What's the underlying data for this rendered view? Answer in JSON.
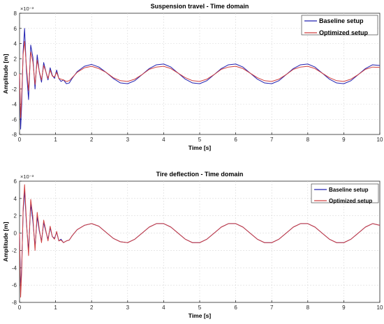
{
  "chart_data": [
    {
      "type": "line",
      "title": "Suspension travel - Time domain",
      "xlabel": "Time [s]",
      "ylabel": "Amplitude [m]",
      "y_exponent_label": "×10⁻³",
      "xlim": [
        0,
        10
      ],
      "ylim": [
        -8,
        8
      ],
      "xticks": [
        "0",
        "1",
        "2",
        "3",
        "4",
        "5",
        "6",
        "7",
        "8",
        "9",
        "10"
      ],
      "yticks": [
        "-8",
        "-6",
        "-4",
        "-2",
        "0",
        "2",
        "4",
        "6",
        "8"
      ],
      "grid": true,
      "legend_position": "top-right",
      "series": [
        {
          "name": "Baseline setup",
          "color": "#2020b0",
          "x": [
            0,
            0.03,
            0.06,
            0.1,
            0.14,
            0.19,
            0.25,
            0.31,
            0.37,
            0.43,
            0.49,
            0.55,
            0.61,
            0.67,
            0.73,
            0.79,
            0.85,
            0.91,
            0.97,
            1.03,
            1.09,
            1.15,
            1.22,
            1.3,
            1.38,
            1.46,
            1.6,
            1.8,
            2.0,
            2.2,
            2.4,
            2.6,
            2.8,
            3.0,
            3.2,
            3.4,
            3.6,
            3.8,
            4.0,
            4.2,
            4.4,
            4.6,
            4.8,
            5.0,
            5.2,
            5.4,
            5.6,
            5.8,
            6.0,
            6.2,
            6.4,
            6.6,
            6.8,
            7.0,
            7.2,
            7.4,
            7.6,
            7.8,
            8.0,
            8.2,
            8.4,
            8.6,
            8.8,
            9.0,
            9.2,
            9.4,
            9.6,
            9.8,
            10.0
          ],
          "y": [
            0,
            -7.3,
            -4.0,
            3.0,
            6.0,
            0.5,
            -3.4,
            3.8,
            2.2,
            -2.0,
            2.5,
            0.2,
            -1.1,
            1.5,
            0.3,
            -0.8,
            0.8,
            -0.2,
            -0.6,
            0.5,
            -0.6,
            -1.0,
            -0.8,
            -1.3,
            -1.2,
            -0.6,
            0.3,
            1.0,
            1.25,
            0.9,
            0.2,
            -0.6,
            -1.2,
            -1.3,
            -0.9,
            -0.1,
            0.7,
            1.2,
            1.3,
            0.9,
            0.1,
            -0.7,
            -1.2,
            -1.3,
            -0.9,
            -0.1,
            0.7,
            1.2,
            1.3,
            0.9,
            0.1,
            -0.7,
            -1.2,
            -1.3,
            -0.9,
            -0.1,
            0.7,
            1.2,
            1.3,
            0.9,
            0.1,
            -0.7,
            -1.2,
            -1.3,
            -0.9,
            -0.1,
            0.7,
            1.2,
            1.1
          ]
        },
        {
          "name": "Optimized setup",
          "color": "#d04040",
          "x": [
            0,
            0.03,
            0.06,
            0.1,
            0.14,
            0.19,
            0.25,
            0.31,
            0.37,
            0.43,
            0.49,
            0.55,
            0.61,
            0.67,
            0.73,
            0.79,
            0.85,
            0.91,
            0.97,
            1.03,
            1.09,
            1.15,
            1.22,
            1.3,
            1.38,
            1.46,
            1.6,
            1.8,
            2.0,
            2.2,
            2.4,
            2.6,
            2.8,
            3.0,
            3.2,
            3.4,
            3.6,
            3.8,
            4.0,
            4.2,
            4.4,
            4.6,
            4.8,
            5.0,
            5.2,
            5.4,
            5.6,
            5.8,
            6.0,
            6.2,
            6.4,
            6.6,
            6.8,
            7.0,
            7.2,
            7.4,
            7.6,
            7.8,
            8.0,
            8.2,
            8.4,
            8.6,
            8.8,
            9.0,
            9.2,
            9.4,
            9.6,
            9.8,
            10.0
          ],
          "y": [
            0,
            -5.8,
            -2.8,
            2.6,
            4.3,
            1.0,
            -2.2,
            2.9,
            1.6,
            -1.4,
            1.8,
            0.3,
            -0.8,
            1.1,
            0.3,
            -0.6,
            0.5,
            -0.3,
            -0.4,
            0.2,
            -0.6,
            -0.7,
            -0.8,
            -1.0,
            -0.9,
            -0.5,
            0.2,
            0.8,
            1.0,
            0.7,
            0.2,
            -0.5,
            -0.9,
            -1.0,
            -0.7,
            -0.1,
            0.6,
            0.9,
            1.0,
            0.7,
            0.1,
            -0.5,
            -0.9,
            -1.0,
            -0.7,
            -0.1,
            0.6,
            0.9,
            1.0,
            0.7,
            0.1,
            -0.5,
            -0.9,
            -1.0,
            -0.7,
            -0.1,
            0.6,
            0.9,
            1.0,
            0.7,
            0.1,
            -0.5,
            -0.9,
            -1.0,
            -0.7,
            -0.1,
            0.6,
            0.9,
            0.85
          ]
        }
      ]
    },
    {
      "type": "line",
      "title": "Tire deflection - Time domain",
      "xlabel": "Time [s]",
      "ylabel": "Amplitude [m]",
      "y_exponent_label": "×10⁻³",
      "xlim": [
        0,
        10
      ],
      "ylim": [
        -8,
        6
      ],
      "xticks": [
        "0",
        "1",
        "2",
        "3",
        "4",
        "5",
        "6",
        "7",
        "8",
        "9",
        "10"
      ],
      "yticks": [
        "-8",
        "-6",
        "-4",
        "-2",
        "0",
        "2",
        "4",
        "6"
      ],
      "grid": true,
      "legend_position": "top-right",
      "series": [
        {
          "name": "Baseline setup",
          "color": "#2020b0",
          "x": [
            0,
            0.03,
            0.06,
            0.1,
            0.14,
            0.19,
            0.25,
            0.31,
            0.37,
            0.43,
            0.49,
            0.55,
            0.61,
            0.67,
            0.73,
            0.79,
            0.85,
            0.91,
            0.97,
            1.03,
            1.09,
            1.15,
            1.22,
            1.3,
            1.38,
            1.46,
            1.6,
            1.8,
            2.0,
            2.2,
            2.4,
            2.6,
            2.8,
            3.0,
            3.2,
            3.4,
            3.6,
            3.8,
            4.0,
            4.2,
            4.4,
            4.6,
            4.8,
            5.0,
            5.2,
            5.4,
            5.6,
            5.8,
            6.0,
            6.2,
            6.4,
            6.6,
            6.8,
            7.0,
            7.2,
            7.4,
            7.6,
            7.8,
            8.0,
            8.2,
            8.4,
            8.6,
            8.8,
            9.0,
            9.2,
            9.4,
            9.6,
            9.8,
            10.0
          ],
          "y": [
            0,
            -6.6,
            -3.8,
            2.5,
            4.9,
            1.2,
            -2.0,
            3.3,
            1.4,
            -1.6,
            1.9,
            0.2,
            -0.9,
            1.2,
            0.2,
            -0.7,
            0.6,
            -0.4,
            -0.6,
            0.1,
            -0.9,
            -0.7,
            -1.1,
            -0.9,
            -0.8,
            -0.3,
            0.4,
            0.9,
            1.1,
            0.8,
            0.1,
            -0.6,
            -1.0,
            -1.1,
            -0.7,
            0.0,
            0.7,
            1.1,
            1.1,
            0.7,
            0.0,
            -0.7,
            -1.1,
            -1.1,
            -0.7,
            0.0,
            0.7,
            1.1,
            1.1,
            0.7,
            0.0,
            -0.7,
            -1.1,
            -1.1,
            -0.7,
            0.0,
            0.7,
            1.1,
            1.1,
            0.7,
            0.0,
            -0.7,
            -1.1,
            -1.1,
            -0.7,
            0.0,
            0.7,
            1.1,
            0.9
          ]
        },
        {
          "name": "Optimized setup",
          "color": "#d04040",
          "x": [
            0,
            0.03,
            0.06,
            0.1,
            0.14,
            0.19,
            0.25,
            0.31,
            0.37,
            0.43,
            0.49,
            0.55,
            0.61,
            0.67,
            0.73,
            0.79,
            0.85,
            0.91,
            0.97,
            1.03,
            1.09,
            1.15,
            1.22,
            1.3,
            1.38,
            1.46,
            1.6,
            1.8,
            2.0,
            2.2,
            2.4,
            2.6,
            2.8,
            3.0,
            3.2,
            3.4,
            3.6,
            3.8,
            4.0,
            4.2,
            4.4,
            4.6,
            4.8,
            5.0,
            5.2,
            5.4,
            5.6,
            5.8,
            6.0,
            6.2,
            6.4,
            6.6,
            6.8,
            7.0,
            7.2,
            7.4,
            7.6,
            7.8,
            8.0,
            8.2,
            8.4,
            8.6,
            8.8,
            9.0,
            9.2,
            9.4,
            9.6,
            9.8,
            10.0
          ],
          "y": [
            0,
            -7.4,
            -4.4,
            2.9,
            5.6,
            1.5,
            -2.6,
            3.9,
            1.9,
            -2.0,
            2.4,
            0.4,
            -1.1,
            1.5,
            0.3,
            -0.9,
            0.8,
            -0.4,
            -0.7,
            0.2,
            -0.9,
            -0.8,
            -1.1,
            -0.9,
            -0.8,
            -0.3,
            0.4,
            0.9,
            1.1,
            0.8,
            0.1,
            -0.6,
            -1.0,
            -1.1,
            -0.7,
            0.0,
            0.7,
            1.1,
            1.1,
            0.7,
            0.0,
            -0.7,
            -1.1,
            -1.1,
            -0.7,
            0.0,
            0.7,
            1.1,
            1.1,
            0.7,
            0.0,
            -0.7,
            -1.1,
            -1.1,
            -0.7,
            0.0,
            0.7,
            1.1,
            1.1,
            0.7,
            0.0,
            -0.7,
            -1.1,
            -1.1,
            -0.7,
            0.0,
            0.7,
            1.1,
            0.9
          ]
        }
      ]
    }
  ]
}
